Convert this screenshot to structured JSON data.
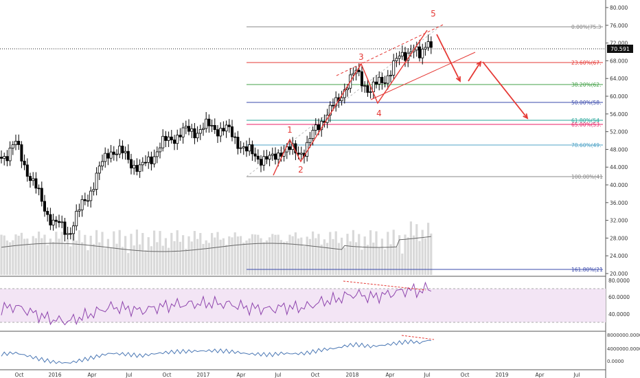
{
  "price_axis": {
    "ticks": [
      "80.000",
      "76.000",
      "72.000",
      "68.000",
      "64.000",
      "60.000",
      "56.000",
      "52.000",
      "48.000",
      "44.000",
      "40.000",
      "36.000",
      "32.000",
      "28.000",
      "24.000",
      "20.000"
    ],
    "last_price": "70.591"
  },
  "rsi_axis": {
    "ticks": [
      "80.0000",
      "60.0000",
      "40.0000"
    ]
  },
  "osc_axis": {
    "ticks": [
      "8000000.0000",
      "4000000.0000",
      "0.0000"
    ]
  },
  "time_axis": {
    "ticks": [
      "Oct",
      "2016",
      "Apr",
      "Jul",
      "Oct",
      "2017",
      "Apr",
      "Jul",
      "Oct",
      "2018",
      "Apr",
      "Jul",
      "Oct",
      "2019",
      "Apr",
      "Jul"
    ]
  },
  "fib_levels": [
    {
      "label": "0.00%(75.3",
      "color": "#888888"
    },
    {
      "label": "23.60%(67.",
      "color": "#e53935"
    },
    {
      "label": "38.20%(62.",
      "color": "#43a047"
    },
    {
      "label": "50.00%(58.",
      "color": "#3949ab"
    },
    {
      "label": "61.80%(54",
      "color": "#26a69a"
    },
    {
      "label": "65.00%(53.",
      "color": "#e91e63"
    },
    {
      "label": "78.60%(49.",
      "color": "#4fa3c7"
    },
    {
      "label": "100.00%(41",
      "color": "#888888"
    },
    {
      "label": "161.80%(21",
      "color": "#3949ab"
    }
  ],
  "wave_labels": [
    "1",
    "2",
    "3",
    "4",
    "5"
  ],
  "colors": {
    "wave": "#e53935",
    "rsi_line": "#8e44ad",
    "osc_line": "#4a77b4",
    "rsi_band": "#f3e5f5"
  }
}
